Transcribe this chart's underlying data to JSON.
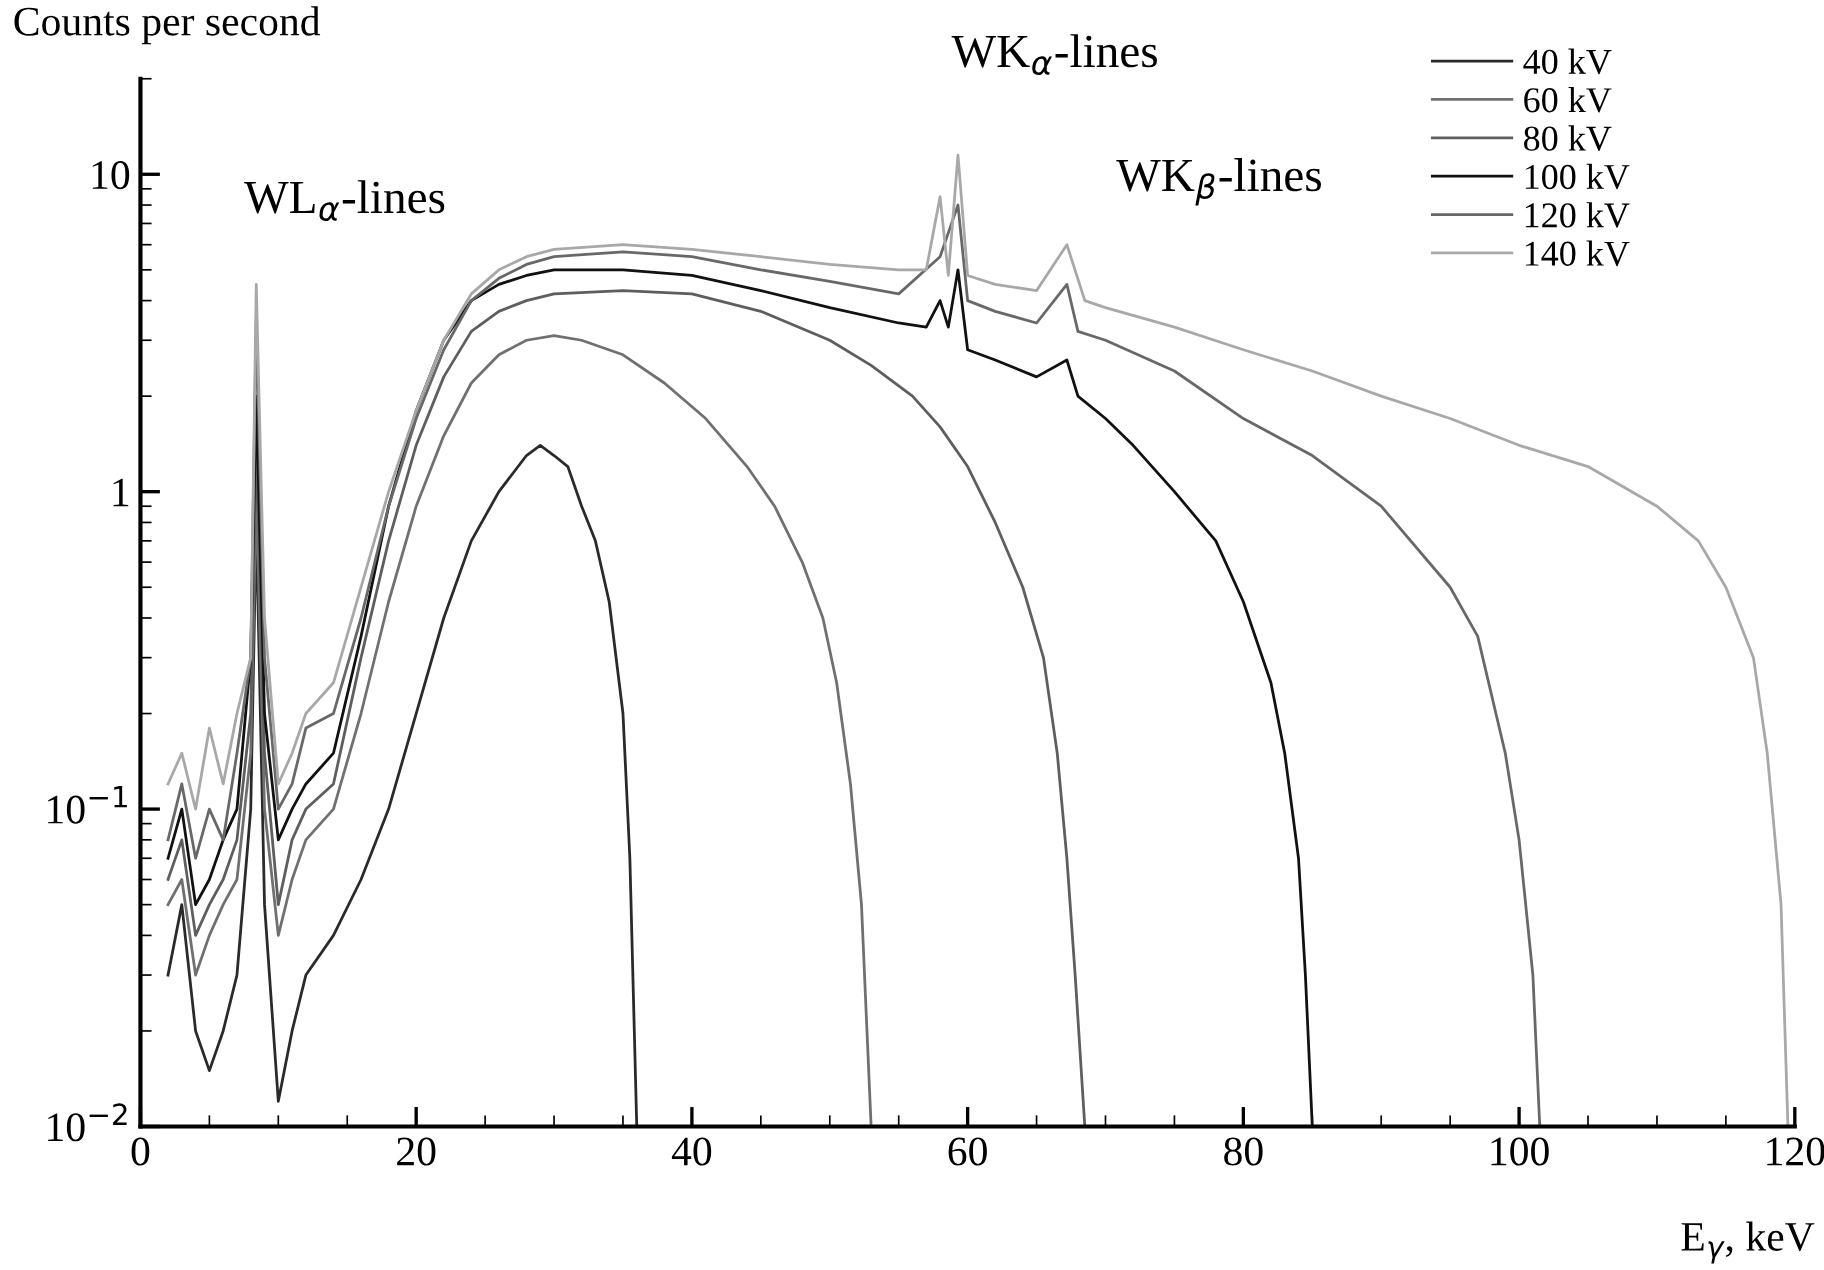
{
  "chart_data": {
    "type": "line",
    "xlabel": "E$_{γ}$, keV",
    "ylabel": "Counts per second",
    "log": "y",
    "grid": false,
    "legend": "top right",
    "marker": "none",
    "line_style": "solid",
    "xlim": [
      0,
      120
    ],
    "xticks": [
      0,
      20,
      40,
      60,
      80,
      100,
      120
    ],
    "ylim": [
      0.01,
      20
    ],
    "yticks": [
      {
        "value": 0.01,
        "label": "10$^{−2}$"
      },
      {
        "value": 0.1,
        "label": "10$^{−1}$"
      },
      1,
      10
    ],
    "annotations": [
      {
        "text": "WL$_{α}$-lines",
        "x": 8.4,
        "y": 4.5
      },
      {
        "text": "WK$_{α}$-lines",
        "x": 59.3,
        "y": 11.5
      },
      {
        "text": "WK$_{β}$-lines",
        "x": 67.2,
        "y": 6
      }
    ],
    "series": [
      {
        "name": "40 kV",
        "color": "#2a2a2a",
        "x": [
          2,
          3,
          4,
          5,
          6,
          7,
          8,
          8.4,
          9,
          10,
          11,
          12,
          14,
          16,
          18,
          20,
          22,
          24,
          26,
          28,
          29,
          30,
          31,
          32,
          33,
          34,
          35,
          35.5,
          36
        ],
        "values": [
          0.03,
          0.05,
          0.02,
          0.015,
          0.02,
          0.03,
          0.1,
          0.8,
          0.05,
          0.012,
          0.02,
          0.03,
          0.04,
          0.06,
          0.1,
          0.2,
          0.4,
          0.7,
          1.0,
          1.3,
          1.4,
          1.3,
          1.2,
          0.9,
          0.7,
          0.45,
          0.2,
          0.07,
          0.01
        ]
      },
      {
        "name": "60 kV",
        "color": "#707070",
        "x": [
          2,
          3,
          4,
          5,
          6,
          7,
          8,
          8.4,
          9,
          10,
          11,
          12,
          14,
          16,
          18,
          20,
          22,
          24,
          26,
          28,
          30,
          32,
          35,
          38,
          41,
          44,
          46,
          48,
          49.5,
          50.5,
          51.5,
          52.3,
          53
        ],
        "values": [
          0.05,
          0.06,
          0.03,
          0.04,
          0.05,
          0.06,
          0.15,
          1.0,
          0.1,
          0.04,
          0.06,
          0.08,
          0.1,
          0.2,
          0.45,
          0.9,
          1.5,
          2.2,
          2.7,
          3.0,
          3.1,
          3.0,
          2.7,
          2.2,
          1.7,
          1.2,
          0.9,
          0.6,
          0.4,
          0.25,
          0.12,
          0.05,
          0.01
        ]
      },
      {
        "name": "80 kV",
        "color": "#5e5e5e",
        "x": [
          2,
          3,
          4,
          5,
          6,
          7,
          8,
          8.4,
          9,
          10,
          11,
          12,
          14,
          16,
          18,
          20,
          22,
          24,
          26,
          28,
          30,
          35,
          40,
          45,
          50,
          53,
          56,
          58,
          60,
          62,
          64,
          65.5,
          66.5,
          67.2,
          67.8,
          68.5
        ],
        "values": [
          0.06,
          0.08,
          0.04,
          0.05,
          0.06,
          0.08,
          0.2,
          1.5,
          0.15,
          0.05,
          0.08,
          0.1,
          0.12,
          0.3,
          0.7,
          1.4,
          2.3,
          3.2,
          3.7,
          4.0,
          4.2,
          4.3,
          4.2,
          3.7,
          3.0,
          2.5,
          2.0,
          1.6,
          1.2,
          0.8,
          0.5,
          0.3,
          0.15,
          0.07,
          0.03,
          0.01
        ]
      },
      {
        "name": "100 kV",
        "color": "#111111",
        "x": [
          2,
          3,
          4,
          5,
          6,
          7,
          8,
          8.4,
          9,
          10,
          11,
          12,
          14,
          16,
          18,
          20,
          22,
          24,
          26,
          28,
          30,
          35,
          40,
          45,
          50,
          55,
          57,
          58,
          58.6,
          59.3,
          60,
          62,
          65,
          67.2,
          68,
          70,
          72,
          75,
          78,
          80,
          82,
          83,
          84,
          84.5,
          85
        ],
        "values": [
          0.07,
          0.1,
          0.05,
          0.06,
          0.08,
          0.1,
          0.3,
          2.0,
          0.2,
          0.08,
          0.1,
          0.12,
          0.15,
          0.35,
          0.9,
          1.8,
          3.0,
          4.0,
          4.5,
          4.8,
          5.0,
          5.0,
          4.8,
          4.3,
          3.8,
          3.4,
          3.3,
          4.0,
          3.3,
          5.0,
          2.8,
          2.6,
          2.3,
          2.6,
          2.0,
          1.7,
          1.4,
          1.0,
          0.7,
          0.45,
          0.25,
          0.15,
          0.07,
          0.03,
          0.01
        ]
      },
      {
        "name": "120 kV",
        "color": "#686868",
        "x": [
          2,
          3,
          4,
          5,
          6,
          7,
          8,
          8.4,
          9,
          10,
          11,
          12,
          14,
          16,
          18,
          20,
          22,
          24,
          26,
          28,
          30,
          35,
          40,
          45,
          50,
          55,
          58,
          59.3,
          60,
          62,
          65,
          67.2,
          68,
          70,
          75,
          80,
          85,
          90,
          95,
          97,
          99,
          100,
          101,
          101.5
        ],
        "values": [
          0.08,
          0.12,
          0.07,
          0.1,
          0.08,
          0.15,
          0.3,
          3.5,
          0.3,
          0.1,
          0.12,
          0.18,
          0.2,
          0.4,
          0.9,
          1.7,
          2.8,
          4.0,
          4.7,
          5.2,
          5.5,
          5.7,
          5.5,
          5.0,
          4.6,
          4.2,
          5.5,
          8.0,
          4.0,
          3.7,
          3.4,
          4.5,
          3.2,
          3.0,
          2.4,
          1.7,
          1.3,
          0.9,
          0.5,
          0.35,
          0.15,
          0.08,
          0.03,
          0.01
        ]
      },
      {
        "name": "140 kV",
        "color": "#a8a8a8",
        "x": [
          2,
          3,
          4,
          5,
          6,
          7,
          8,
          8.4,
          9,
          10,
          11,
          12,
          14,
          16,
          18,
          20,
          22,
          24,
          26,
          28,
          30,
          35,
          40,
          45,
          50,
          55,
          57,
          58.0,
          58.6,
          59.3,
          60,
          62,
          65,
          67.2,
          68.5,
          70,
          75,
          80,
          85,
          90,
          95,
          100,
          105,
          110,
          113,
          115,
          117,
          118,
          119,
          119.5
        ],
        "values": [
          0.12,
          0.15,
          0.1,
          0.18,
          0.12,
          0.2,
          0.3,
          4.5,
          0.4,
          0.12,
          0.15,
          0.2,
          0.25,
          0.5,
          1.0,
          1.8,
          3.0,
          4.2,
          5.0,
          5.5,
          5.8,
          6.0,
          5.8,
          5.5,
          5.2,
          5.0,
          5.0,
          8.5,
          4.8,
          11.5,
          4.8,
          4.5,
          4.3,
          6.0,
          4.0,
          3.8,
          3.3,
          2.8,
          2.4,
          2.0,
          1.7,
          1.4,
          1.2,
          0.9,
          0.7,
          0.5,
          0.3,
          0.15,
          0.05,
          0.01
        ]
      }
    ]
  }
}
